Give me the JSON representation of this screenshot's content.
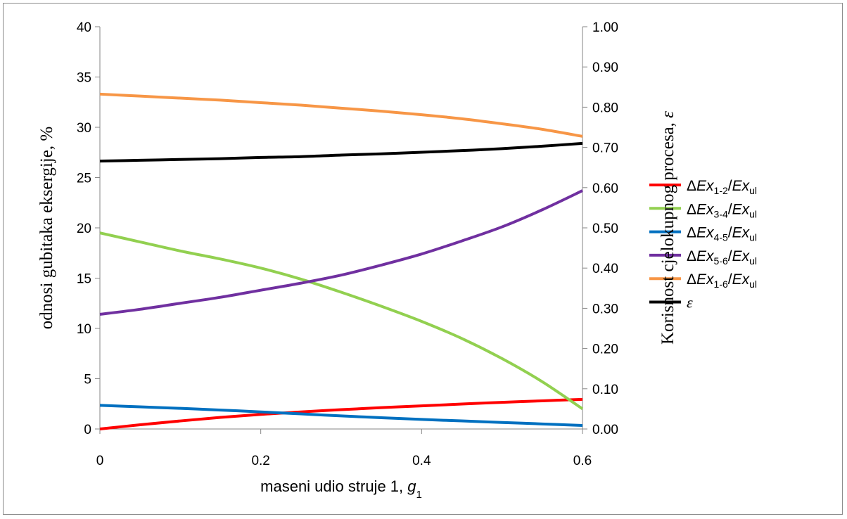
{
  "chart_data": {
    "type": "line",
    "xlabel": "maseni udio struje 1, ",
    "xlabel_var": "g",
    "xlabel_sub": "1",
    "ylabel": "odnosi gubitaka eksergije, %",
    "y2label_text": "Korisnost cjelokupnog procesa, ",
    "y2label_symbol": "ε",
    "xlim": [
      0,
      0.6
    ],
    "ylim": [
      0,
      40
    ],
    "y2lim": [
      0,
      1.0
    ],
    "x_ticks": [
      "0",
      "0.2",
      "0.4",
      "0.6"
    ],
    "y_ticks": [
      "0",
      "5",
      "10",
      "15",
      "20",
      "25",
      "30",
      "35",
      "40"
    ],
    "y2_ticks": [
      "0.00",
      "0.10",
      "0.20",
      "0.30",
      "0.40",
      "0.50",
      "0.60",
      "0.70",
      "0.80",
      "0.90",
      "1.00"
    ],
    "grid": false,
    "legend_position": "right",
    "x": [
      0,
      0.05,
      0.1,
      0.15,
      0.2,
      0.25,
      0.3,
      0.35,
      0.4,
      0.45,
      0.5,
      0.55,
      0.6
    ],
    "series": [
      {
        "name": "ΔEx1-2/Exul",
        "label_prefix": "Δ",
        "label_var": "Ex",
        "label_sub": "1-2",
        "label_den_var": "Ex",
        "label_den_sub": "ul",
        "color": "#ff0000",
        "axis": "left",
        "values": [
          0.0,
          0.42,
          0.8,
          1.15,
          1.45,
          1.7,
          1.92,
          2.12,
          2.3,
          2.48,
          2.65,
          2.8,
          2.95
        ]
      },
      {
        "name": "ΔEx3-4/Exul",
        "label_prefix": "Δ",
        "label_var": "Ex",
        "label_sub": "3-4",
        "label_den_var": "Ex",
        "label_den_sub": "ul",
        "color": "#92d050",
        "axis": "left",
        "values": [
          19.5,
          18.6,
          17.7,
          16.9,
          16.0,
          14.9,
          13.6,
          12.2,
          10.7,
          9.0,
          7.0,
          4.7,
          2.0
        ]
      },
      {
        "name": "ΔEx4-5/Exul",
        "label_prefix": "Δ",
        "label_var": "Ex",
        "label_sub": "4-5",
        "label_den_var": "Ex",
        "label_den_sub": "ul",
        "color": "#0070c0",
        "axis": "left",
        "values": [
          2.35,
          2.2,
          2.05,
          1.88,
          1.7,
          1.5,
          1.3,
          1.12,
          0.95,
          0.8,
          0.65,
          0.5,
          0.35
        ]
      },
      {
        "name": "ΔEx5-6/Exul",
        "label_prefix": "Δ",
        "label_var": "Ex",
        "label_sub": "5-6",
        "label_den_var": "Ex",
        "label_den_sub": "ul",
        "color": "#7030a0",
        "axis": "left",
        "values": [
          11.4,
          11.9,
          12.5,
          13.1,
          13.8,
          14.5,
          15.3,
          16.3,
          17.4,
          18.7,
          20.1,
          21.8,
          23.7
        ]
      },
      {
        "name": "ΔEx1-6/Exul",
        "label_prefix": "Δ",
        "label_var": "Ex",
        "label_sub": "1-6",
        "label_den_var": "Ex",
        "label_den_sub": "ul",
        "color": "#f79646",
        "axis": "left",
        "values": [
          33.3,
          33.1,
          32.9,
          32.7,
          32.45,
          32.2,
          31.9,
          31.6,
          31.25,
          30.85,
          30.35,
          29.8,
          29.1
        ]
      },
      {
        "name": "ε",
        "label_prefix": "",
        "label_var": "ε",
        "label_sub": "",
        "label_den_var": "",
        "label_den_sub": "",
        "color": "#000000",
        "axis": "right",
        "values": [
          0.666,
          0.668,
          0.67,
          0.672,
          0.675,
          0.677,
          0.681,
          0.684,
          0.688,
          0.692,
          0.697,
          0.703,
          0.71
        ]
      }
    ]
  }
}
